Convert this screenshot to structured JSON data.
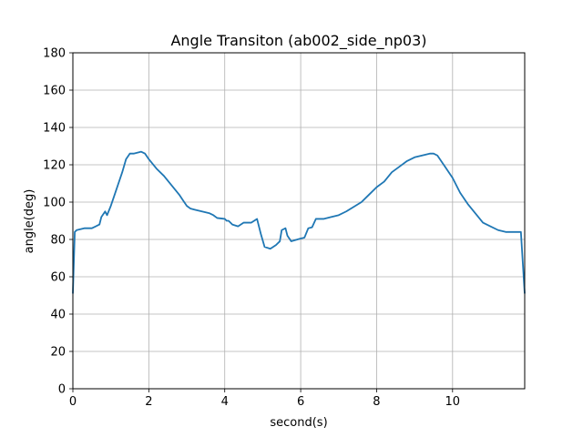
{
  "chart_data": {
    "type": "line",
    "title": "Angle Transiton (ab002_side_np03)",
    "xlabel": "second(s)",
    "ylabel": "angle(deg)",
    "xlim": [
      0,
      11.9
    ],
    "ylim": [
      0,
      180
    ],
    "xticks": [
      0,
      2,
      4,
      6,
      8,
      10
    ],
    "yticks": [
      0,
      20,
      40,
      60,
      80,
      100,
      120,
      140,
      160,
      180
    ],
    "grid": true,
    "series": [
      {
        "color": "#1f77b4",
        "x": [
          0.0,
          0.05,
          0.1,
          0.3,
          0.5,
          0.6,
          0.7,
          0.75,
          0.85,
          0.9,
          1.0,
          1.1,
          1.2,
          1.3,
          1.4,
          1.5,
          1.6,
          1.8,
          1.9,
          2.0,
          2.2,
          2.4,
          2.6,
          2.8,
          2.9,
          3.0,
          3.1,
          3.2,
          3.4,
          3.6,
          3.7,
          3.8,
          4.0,
          4.05,
          4.1,
          4.2,
          4.35,
          4.5,
          4.7,
          4.85,
          4.95,
          5.05,
          5.2,
          5.35,
          5.45,
          5.5,
          5.6,
          5.65,
          5.75,
          6.0,
          6.1,
          6.2,
          6.3,
          6.4,
          6.6,
          6.8,
          7.0,
          7.2,
          7.4,
          7.6,
          7.8,
          8.0,
          8.2,
          8.4,
          8.6,
          8.8,
          9.0,
          9.2,
          9.4,
          9.5,
          9.6,
          9.8,
          10.0,
          10.2,
          10.4,
          10.6,
          10.8,
          11.0,
          11.2,
          11.4,
          11.6,
          11.8,
          11.9
        ],
        "y": [
          51,
          84,
          85,
          86,
          86,
          87,
          88,
          92,
          95,
          93,
          98,
          104,
          110,
          116,
          123,
          126,
          126,
          127,
          126,
          123,
          118,
          114,
          109,
          104,
          101,
          98,
          96.5,
          96,
          95,
          94,
          93,
          91.5,
          91,
          90,
          90,
          88,
          87,
          89,
          89,
          91,
          83,
          76,
          75,
          77,
          79,
          85,
          86,
          82,
          79,
          80.5,
          81,
          86,
          86.5,
          91,
          91,
          92,
          93,
          95,
          97.5,
          100,
          104,
          108,
          111,
          116,
          119,
          122,
          124,
          125,
          126,
          126,
          125,
          119,
          113,
          105,
          99,
          94,
          89,
          87,
          85,
          84,
          84,
          84,
          51
        ]
      }
    ]
  }
}
